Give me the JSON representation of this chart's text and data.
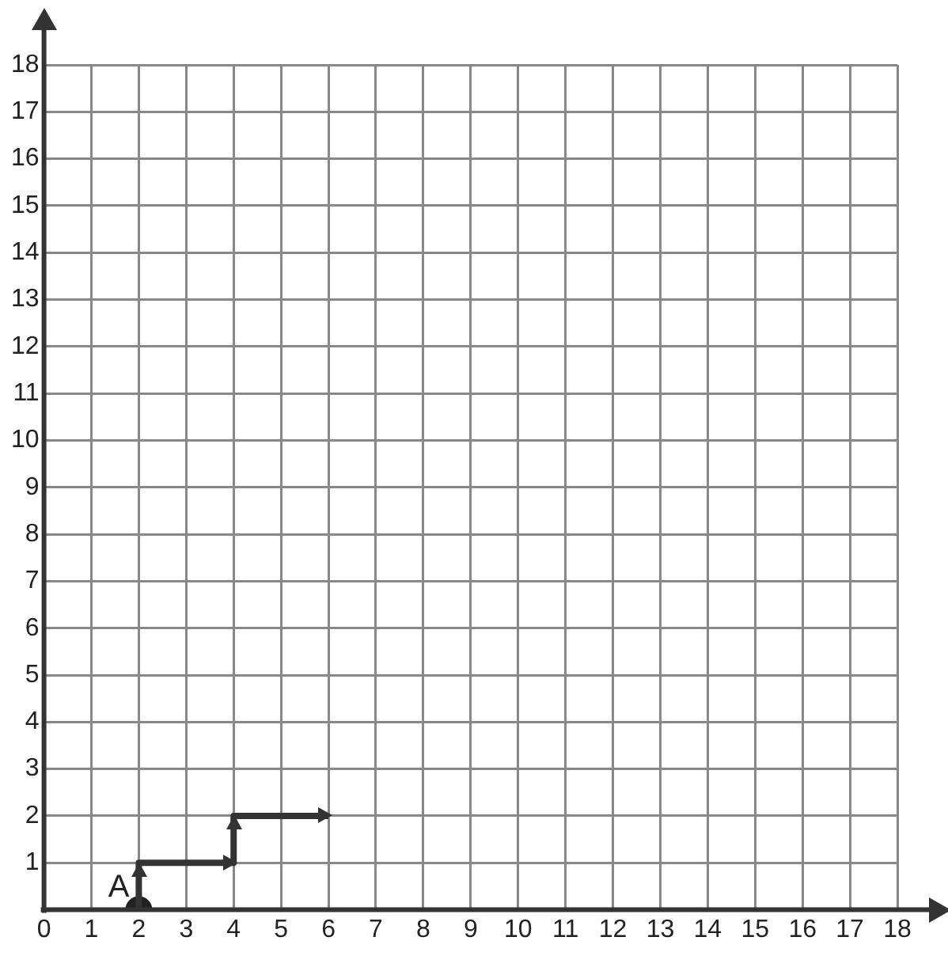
{
  "chart_data": {
    "type": "line",
    "xlim": [
      0,
      18
    ],
    "ylim": [
      0,
      18
    ],
    "xticks": [
      0,
      1,
      2,
      3,
      4,
      5,
      6,
      7,
      8,
      9,
      10,
      11,
      12,
      13,
      14,
      15,
      16,
      17,
      18
    ],
    "yticks": [
      {
        "value": 0,
        "label": null
      },
      1,
      2,
      3,
      4,
      5,
      6,
      7,
      8,
      9,
      10,
      11,
      12,
      13,
      14,
      15,
      16,
      17,
      18
    ],
    "grid": true,
    "legend": false,
    "series": [
      {
        "type": "line",
        "color": "#333333",
        "marker": "none",
        "line_style": "solid",
        "x": [
          2,
          2,
          4,
          4,
          6
        ],
        "values": [
          0,
          1,
          1,
          2,
          2
        ]
      },
      {
        "type": "scatter",
        "color": "#222222",
        "marker": "circle",
        "x": [
          2
        ],
        "values": [
          0
        ]
      }
    ],
    "annotations": [
      {
        "text": "A",
        "x": 2,
        "y": 0
      }
    ]
  }
}
